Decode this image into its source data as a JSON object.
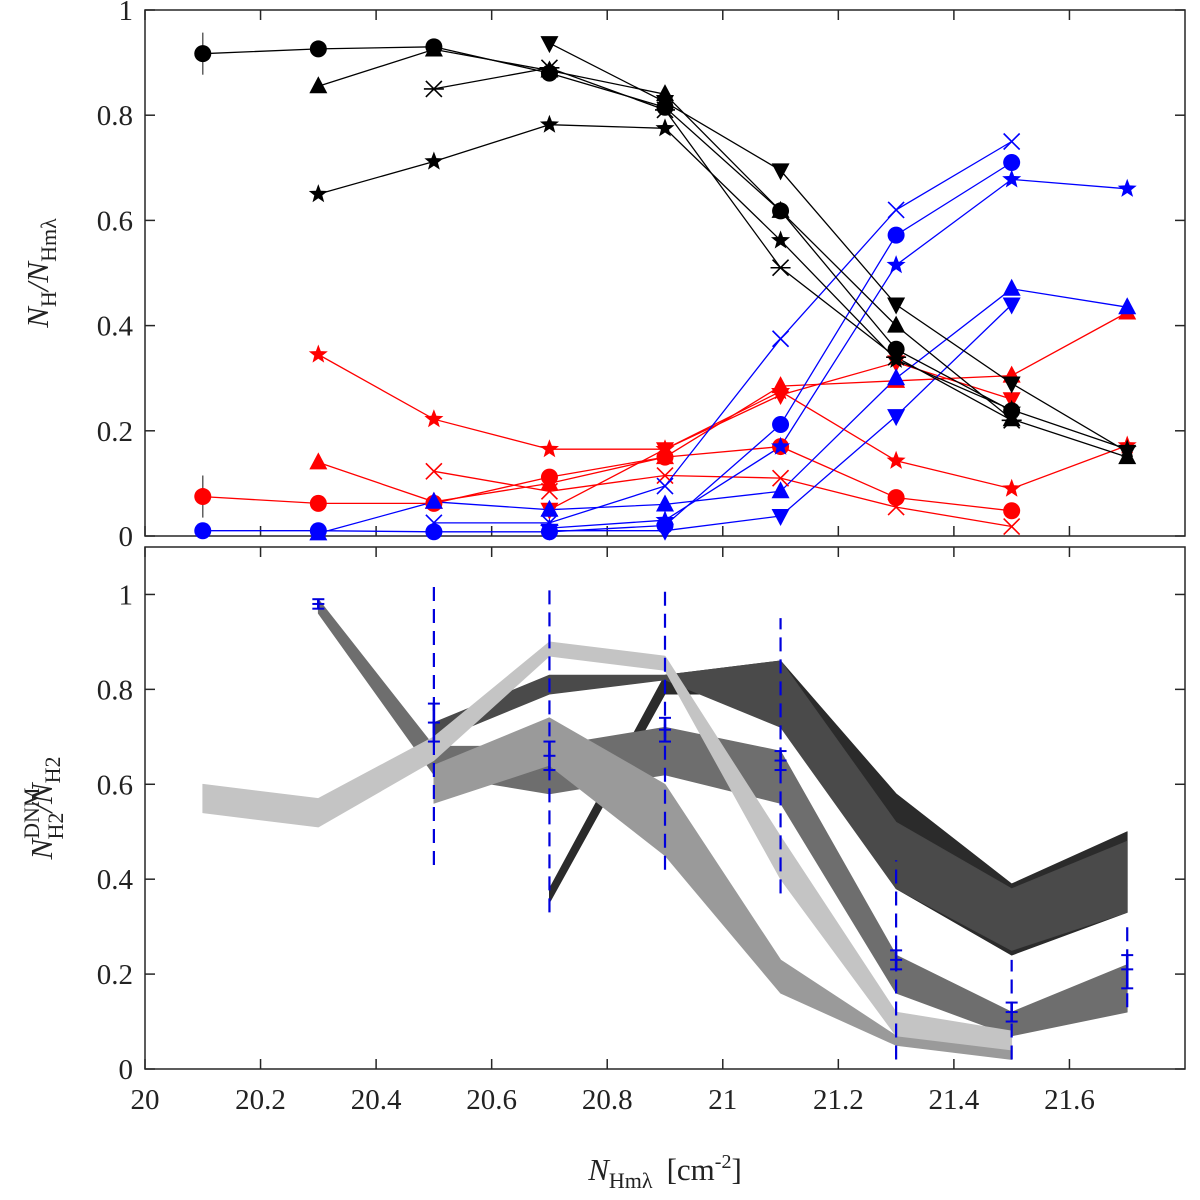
{
  "chart_data": [
    {
      "type": "line",
      "panel": "top",
      "ylabel": {
        "main": "N",
        "sub1": "H",
        "slash": "/N",
        "sub2": "Hmλ"
      },
      "xlim": [
        20,
        21.8
      ],
      "ylim": [
        0,
        1
      ],
      "yticks": [
        0,
        0.2,
        0.4,
        0.6,
        0.8,
        1
      ],
      "yticklabels": [
        "0",
        "0.2",
        "0.4",
        "0.6",
        "0.8",
        "1"
      ],
      "colors": {
        "HI": "#000000",
        "CNM": "#0000ff",
        "DNM": "#ff0000"
      },
      "series": [
        {
          "name": "HI circle",
          "group": "HI",
          "marker": "circle",
          "x": [
            20.1,
            20.3,
            20.5,
            20.7,
            20.9,
            21.1,
            21.3,
            21.5
          ],
          "y": [
            0.917,
            0.926,
            0.93,
            0.88,
            0.815,
            0.618,
            0.355,
            0.238
          ]
        },
        {
          "name": "HI triangle-up",
          "group": "HI",
          "marker": "triangle-up",
          "x": [
            20.3,
            20.5,
            20.7,
            20.9,
            21.1,
            21.3,
            21.5,
            21.7
          ],
          "y": [
            0.855,
            0.925,
            0.885,
            0.84,
            0.618,
            0.4,
            0.222,
            0.15
          ]
        },
        {
          "name": "HI asterisk",
          "group": "HI",
          "marker": "asterisk",
          "x": [
            20.5,
            20.7,
            20.9,
            21.1,
            21.3,
            21.5
          ],
          "y": [
            0.85,
            0.89,
            0.81,
            0.51,
            0.34,
            0.22
          ]
        },
        {
          "name": "HI triangle-down",
          "group": "HI",
          "marker": "triangle-down",
          "x": [
            20.7,
            20.9,
            21.1,
            21.3,
            21.5,
            21.7
          ],
          "y": [
            0.937,
            0.825,
            0.695,
            0.44,
            0.29,
            0.16
          ]
        },
        {
          "name": "HI star",
          "group": "HI",
          "marker": "star",
          "x": [
            20.3,
            20.5,
            20.7,
            20.9,
            21.1,
            21.3,
            21.5,
            21.7
          ],
          "y": [
            0.65,
            0.712,
            0.782,
            0.775,
            0.562,
            0.335,
            0.24,
            0.165
          ]
        },
        {
          "name": "CNM circle",
          "group": "CNM",
          "marker": "circle",
          "x": [
            20.1,
            20.3,
            20.5,
            20.7,
            20.9,
            21.1,
            21.3,
            21.5
          ],
          "y": [
            0.01,
            0.01,
            0.008,
            0.008,
            0.02,
            0.212,
            0.572,
            0.71
          ]
        },
        {
          "name": "CNM triangle-up",
          "group": "CNM",
          "marker": "triangle-up",
          "x": [
            20.3,
            20.5,
            20.7,
            20.9,
            21.1,
            21.3,
            21.5,
            21.7
          ],
          "y": [
            0.005,
            0.065,
            0.05,
            0.06,
            0.085,
            0.3,
            0.47,
            0.435
          ]
        },
        {
          "name": "CNM asterisk",
          "group": "CNM",
          "marker": "x",
          "x": [
            20.5,
            20.7,
            20.9,
            21.1,
            21.3,
            21.5
          ],
          "y": [
            0.025,
            0.025,
            0.095,
            0.375,
            0.62,
            0.75
          ]
        },
        {
          "name": "CNM triangle-down",
          "group": "CNM",
          "marker": "triangle-down",
          "x": [
            20.7,
            20.9,
            21.1,
            21.3,
            21.5
          ],
          "y": [
            0.01,
            0.01,
            0.038,
            0.228,
            0.44
          ]
        },
        {
          "name": "CNM star",
          "group": "CNM",
          "marker": "star",
          "x": [
            20.7,
            20.9,
            21.1,
            21.3,
            21.5,
            21.7
          ],
          "y": [
            0.015,
            0.03,
            0.17,
            0.515,
            0.678,
            0.66
          ]
        },
        {
          "name": "DNM circle",
          "group": "DNM",
          "marker": "circle",
          "x": [
            20.1,
            20.3,
            20.5,
            20.7,
            20.9,
            21.1,
            21.3,
            21.5
          ],
          "y": [
            0.075,
            0.062,
            0.062,
            0.112,
            0.15,
            0.17,
            0.073,
            0.048
          ]
        },
        {
          "name": "DNM triangle-up",
          "group": "DNM",
          "marker": "triangle-up",
          "x": [
            20.3,
            20.5,
            20.7,
            20.9,
            21.1,
            21.3,
            21.5,
            21.7
          ],
          "y": [
            0.14,
            0.065,
            0.1,
            0.15,
            0.285,
            0.295,
            0.305,
            0.425
          ]
        },
        {
          "name": "DNM asterisk",
          "group": "DNM",
          "marker": "x",
          "x": [
            20.5,
            20.7,
            20.9,
            21.1,
            21.3,
            21.5
          ],
          "y": [
            0.123,
            0.085,
            0.115,
            0.11,
            0.055,
            0.018
          ]
        },
        {
          "name": "DNM triangle-down",
          "group": "DNM",
          "marker": "triangle-down",
          "x": [
            20.7,
            20.9,
            21.1,
            21.3,
            21.5
          ],
          "y": [
            0.05,
            0.165,
            0.268,
            0.33,
            0.26
          ]
        },
        {
          "name": "DNM star",
          "group": "DNM",
          "marker": "star",
          "x": [
            20.3,
            20.5,
            20.7,
            20.9,
            21.1,
            21.3,
            21.5,
            21.7
          ],
          "y": [
            0.345,
            0.222,
            0.165,
            0.165,
            0.275,
            0.143,
            0.09,
            0.172
          ]
        }
      ],
      "errorbars": [
        {
          "x": 20.1,
          "y": 0.917,
          "err": 0.04
        },
        {
          "x": 20.1,
          "y": 0.075,
          "err": 0.04
        }
      ]
    },
    {
      "type": "area",
      "panel": "bottom",
      "xlabel": {
        "main": "N",
        "sub": "Hmλ",
        "unit": "[cm",
        "exp": "-2",
        "close": "]"
      },
      "ylabel": {
        "main": "N",
        "sup": "DNM",
        "sub1": "H2",
        "slash": "/N",
        "sub2": "H2"
      },
      "xlim": [
        20,
        21.8
      ],
      "ylim": [
        0,
        1.1
      ],
      "xticks": [
        20,
        20.2,
        20.4,
        20.6,
        20.8,
        21,
        21.2,
        21.4,
        21.6
      ],
      "xticklabels": [
        "20",
        "20.2",
        "20.4",
        "20.6",
        "20.8",
        "21",
        "21.2",
        "21.4",
        "21.6"
      ],
      "yticks": [
        0,
        0.2,
        0.4,
        0.6,
        0.8,
        1
      ],
      "yticklabels": [
        "0",
        "0.2",
        "0.4",
        "0.6",
        "0.8",
        "1"
      ],
      "bands": [
        {
          "name": "band-darkest",
          "color": "#2b2b2b",
          "x": [
            20.7,
            20.9,
            21.1,
            21.3,
            21.5,
            21.7
          ],
          "lo": [
            0.35,
            0.79,
            0.79,
            0.38,
            0.24,
            0.33
          ],
          "hi": [
            0.38,
            0.83,
            0.86,
            0.58,
            0.39,
            0.5
          ]
        },
        {
          "name": "band-dark",
          "color": "#4a4a4a",
          "x": [
            20.5,
            20.7,
            20.9,
            21.1,
            21.3,
            21.5,
            21.7
          ],
          "lo": [
            0.69,
            0.79,
            0.82,
            0.72,
            0.38,
            0.25,
            0.33
          ],
          "hi": [
            0.73,
            0.83,
            0.83,
            0.86,
            0.52,
            0.38,
            0.48
          ]
        },
        {
          "name": "band-mid",
          "color": "#6e6e6e",
          "x": [
            20.3,
            20.5,
            20.7,
            20.9,
            21.1,
            21.3,
            21.5,
            21.7
          ],
          "lo": [
            0.96,
            0.62,
            0.58,
            0.62,
            0.56,
            0.16,
            0.07,
            0.12
          ],
          "hi": [
            0.99,
            0.68,
            0.68,
            0.72,
            0.67,
            0.24,
            0.12,
            0.22
          ]
        },
        {
          "name": "band-light",
          "color": "#9a9a9a",
          "x": [
            20.5,
            20.7,
            20.9,
            21.1,
            21.3,
            21.5
          ],
          "lo": [
            0.56,
            0.64,
            0.45,
            0.16,
            0.05,
            0.02
          ],
          "hi": [
            0.64,
            0.74,
            0.6,
            0.23,
            0.07,
            0.04
          ]
        },
        {
          "name": "band-lightest",
          "color": "#c4c4c4",
          "x": [
            20.1,
            20.3,
            20.5,
            20.7,
            20.9,
            21.1,
            21.3,
            21.5
          ],
          "lo": [
            0.54,
            0.51,
            0.65,
            0.87,
            0.84,
            0.4,
            0.07,
            0.04
          ],
          "hi": [
            0.6,
            0.57,
            0.7,
            0.9,
            0.87,
            0.49,
            0.12,
            0.08
          ]
        }
      ],
      "errorbars_color": "#0000dd",
      "errorbars": [
        {
          "x": 20.3,
          "y": 0.98,
          "lo": 0.97,
          "hi": 0.99,
          "dashed": false
        },
        {
          "x": 20.5,
          "y": 0.73,
          "lo": 0.69,
          "hi": 0.77,
          "dashed": false
        },
        {
          "x": 20.5,
          "y": 0.73,
          "lo": 0.43,
          "hi": 1.03,
          "dashed": true
        },
        {
          "x": 20.7,
          "y": 0.66,
          "lo": 0.63,
          "hi": 0.69,
          "dashed": false
        },
        {
          "x": 20.7,
          "y": 0.66,
          "lo": 0.33,
          "hi": 1.01,
          "dashed": true
        },
        {
          "x": 20.9,
          "y": 0.715,
          "lo": 0.69,
          "hi": 0.74,
          "dashed": false
        },
        {
          "x": 20.9,
          "y": 0.715,
          "lo": 0.42,
          "hi": 1.01,
          "dashed": true
        },
        {
          "x": 21.1,
          "y": 0.65,
          "lo": 0.63,
          "hi": 0.67,
          "dashed": false
        },
        {
          "x": 21.1,
          "y": 0.65,
          "lo": 0.37,
          "hi": 0.95,
          "dashed": true
        },
        {
          "x": 21.3,
          "y": 0.23,
          "lo": 0.21,
          "hi": 0.25,
          "dashed": false
        },
        {
          "x": 21.3,
          "y": 0.23,
          "lo": 0.02,
          "hi": 0.44,
          "dashed": true
        },
        {
          "x": 21.5,
          "y": 0.12,
          "lo": 0.1,
          "hi": 0.14,
          "dashed": false
        },
        {
          "x": 21.5,
          "y": 0.12,
          "lo": 0.02,
          "hi": 0.23,
          "dashed": true
        },
        {
          "x": 21.7,
          "y": 0.21,
          "lo": 0.17,
          "hi": 0.24,
          "dashed": false
        },
        {
          "x": 21.7,
          "y": 0.21,
          "lo": 0.13,
          "hi": 0.31,
          "dashed": true
        }
      ]
    }
  ]
}
